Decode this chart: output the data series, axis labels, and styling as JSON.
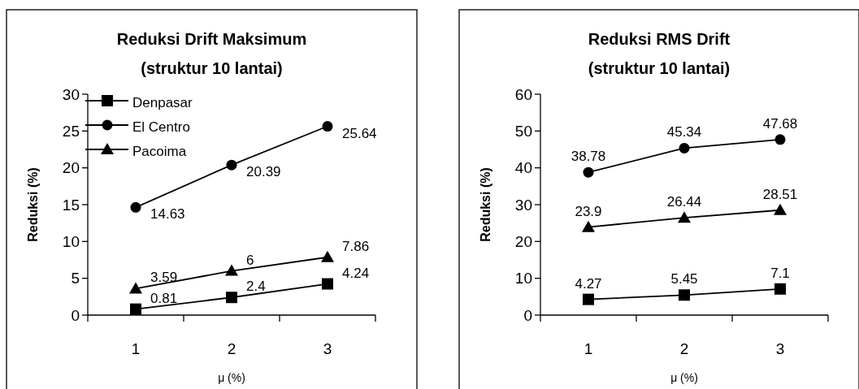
{
  "chart_data": [
    {
      "type": "line",
      "title": "Reduksi Drift Maksimum\n(struktur 10 lantai)",
      "xlabel": "μ (%)",
      "ylabel": "Reduksi (%)",
      "categories": [
        "1",
        "2",
        "3"
      ],
      "ylim": [
        0,
        30
      ],
      "yticks": [
        0,
        5,
        10,
        15,
        20,
        25,
        30
      ],
      "grid": false,
      "legend": "top left",
      "data_labels": true,
      "series": [
        {
          "name": "Denpasar",
          "color": "#000000",
          "marker": "square",
          "values": [
            0.81,
            2.4,
            4.24
          ]
        },
        {
          "name": "El Centro",
          "color": "#000000",
          "marker": "circle",
          "values": [
            14.63,
            20.39,
            25.64
          ]
        },
        {
          "name": "Pacoima",
          "color": "#000000",
          "marker": "triangle",
          "values": [
            3.59,
            6,
            7.86
          ]
        }
      ]
    },
    {
      "type": "line",
      "title": "Reduksi RMS Drift\n(struktur 10 lantai)",
      "xlabel": "μ (%)",
      "ylabel": "Reduksi (%)",
      "categories": [
        "1",
        "2",
        "3"
      ],
      "ylim": [
        0,
        60
      ],
      "yticks": [
        0,
        10,
        20,
        30,
        40,
        50,
        60
      ],
      "grid": false,
      "legend": false,
      "data_labels": true,
      "series": [
        {
          "color": "#000000",
          "marker": "square",
          "values": [
            4.27,
            5.45,
            7.1
          ]
        },
        {
          "color": "#000000",
          "marker": "circle",
          "values": [
            38.78,
            45.34,
            47.68
          ]
        },
        {
          "color": "#000000",
          "marker": "triangle",
          "values": [
            23.9,
            26.44,
            28.51
          ]
        }
      ]
    }
  ]
}
